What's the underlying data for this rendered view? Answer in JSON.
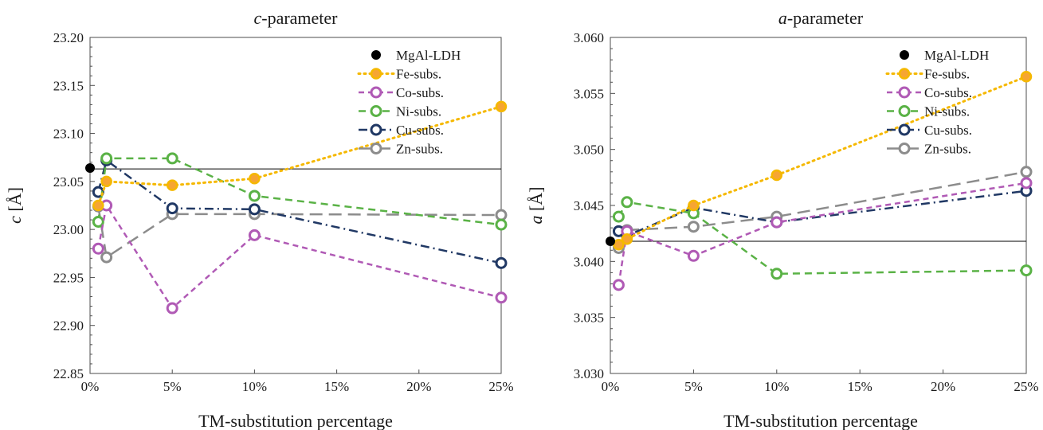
{
  "chart_data": [
    {
      "type": "line",
      "title": "c-parameter",
      "title_var": "c",
      "title_rest": "-parameter",
      "xlabel": "TM-substitution percentage",
      "ylabel_var": "c",
      "ylabel_unit": " [Å]",
      "xlim": [
        0,
        25
      ],
      "ylim": [
        22.85,
        23.2
      ],
      "x_ticks": [
        "0%",
        "5%",
        "10%",
        "15%",
        "20%",
        "25%"
      ],
      "x_tick_values": [
        0,
        5,
        10,
        15,
        20,
        25
      ],
      "y_ticks": [
        "22.85",
        "22.90",
        "22.95",
        "23.00",
        "23.05",
        "23.10",
        "23.15",
        "23.20"
      ],
      "y_tick_values": [
        22.85,
        22.9,
        22.95,
        23.0,
        23.05,
        23.1,
        23.15,
        23.2
      ],
      "reference_line": 23.063,
      "legend_position": "top-right",
      "series": [
        {
          "name": "MgAl-LDH",
          "key": "mgal",
          "x": [
            0
          ],
          "y": [
            23.064
          ]
        },
        {
          "name": "Fe-subs.",
          "key": "fe",
          "x": [
            0.5,
            1,
            5,
            10,
            25
          ],
          "y": [
            23.025,
            23.05,
            23.046,
            23.053,
            23.128
          ]
        },
        {
          "name": "Co-subs.",
          "key": "co",
          "x": [
            0.5,
            1,
            5,
            10,
            25
          ],
          "y": [
            22.98,
            23.025,
            22.918,
            22.994,
            22.929
          ]
        },
        {
          "name": "Ni-subs.",
          "key": "ni",
          "x": [
            0.5,
            1,
            5,
            10,
            25
          ],
          "y": [
            23.008,
            23.074,
            23.074,
            23.035,
            23.005
          ]
        },
        {
          "name": "Cu-subs.",
          "key": "cu",
          "x": [
            0.5,
            1,
            5,
            10,
            25
          ],
          "y": [
            23.039,
            23.072,
            23.022,
            23.021,
            22.965
          ]
        },
        {
          "name": "Zn-subs.",
          "key": "zn",
          "x": [
            0.5,
            1,
            5,
            10,
            25
          ],
          "y": [
            23.024,
            22.971,
            23.016,
            23.016,
            23.015
          ]
        }
      ]
    },
    {
      "type": "line",
      "title": "a-parameter",
      "title_var": "a",
      "title_rest": "-parameter",
      "xlabel": "TM-substitution percentage",
      "ylabel_var": "a",
      "ylabel_unit": " [Å]",
      "xlim": [
        0,
        25
      ],
      "ylim": [
        3.03,
        3.06
      ],
      "x_ticks": [
        "0%",
        "5%",
        "10%",
        "15%",
        "20%",
        "25%"
      ],
      "x_tick_values": [
        0,
        5,
        10,
        15,
        20,
        25
      ],
      "y_ticks": [
        "3.030",
        "3.035",
        "3.040",
        "3.045",
        "3.050",
        "3.055",
        "3.060"
      ],
      "y_tick_values": [
        3.03,
        3.035,
        3.04,
        3.045,
        3.05,
        3.055,
        3.06
      ],
      "reference_line": 3.0418,
      "legend_position": "top-right",
      "series": [
        {
          "name": "MgAl-LDH",
          "key": "mgal",
          "x": [
            0
          ],
          "y": [
            3.0418
          ]
        },
        {
          "name": "Fe-subs.",
          "key": "fe",
          "x": [
            0.5,
            1,
            5,
            10,
            25
          ],
          "y": [
            3.0415,
            3.042,
            3.045,
            3.0477,
            3.0565
          ]
        },
        {
          "name": "Co-subs.",
          "key": "co",
          "x": [
            0.5,
            1,
            5,
            10,
            25
          ],
          "y": [
            3.0379,
            3.0427,
            3.0405,
            3.0435,
            3.047
          ]
        },
        {
          "name": "Ni-subs.",
          "key": "ni",
          "x": [
            0.5,
            1,
            5,
            10,
            25
          ],
          "y": [
            3.044,
            3.0453,
            3.0443,
            3.0389,
            3.0392
          ]
        },
        {
          "name": "Cu-subs.",
          "key": "cu",
          "x": [
            0.5,
            1,
            5,
            10,
            25
          ],
          "y": [
            3.0427,
            3.0423,
            3.0448,
            3.0435,
            3.0463
          ]
        },
        {
          "name": "Zn-subs.",
          "key": "zn",
          "x": [
            0.5,
            1,
            5,
            10,
            25
          ],
          "y": [
            3.0412,
            3.0428,
            3.0431,
            3.044,
            3.048
          ]
        }
      ]
    }
  ],
  "styles": {
    "mgal": {
      "color": "#000000",
      "fill": "#000000",
      "dash": "",
      "marker": "filled"
    },
    "fe": {
      "color": "#f5b800",
      "fill": "#f6a533",
      "dash": "2 5",
      "marker": "filled-ring"
    },
    "co": {
      "color": "#b05ab5",
      "fill": "#ffffff",
      "dash": "7 5",
      "marker": "ring"
    },
    "ni": {
      "color": "#5ab246",
      "fill": "#ffffff",
      "dash": "9 6",
      "marker": "ring"
    },
    "cu": {
      "color": "#203864",
      "fill": "#ffffff",
      "dash": "11 5 2 5",
      "marker": "ring"
    },
    "zn": {
      "color": "#8c8c8c",
      "fill": "#ffffff",
      "dash": "16 8",
      "marker": "ring"
    },
    "grid": false,
    "reference_line_color": "#000000"
  }
}
